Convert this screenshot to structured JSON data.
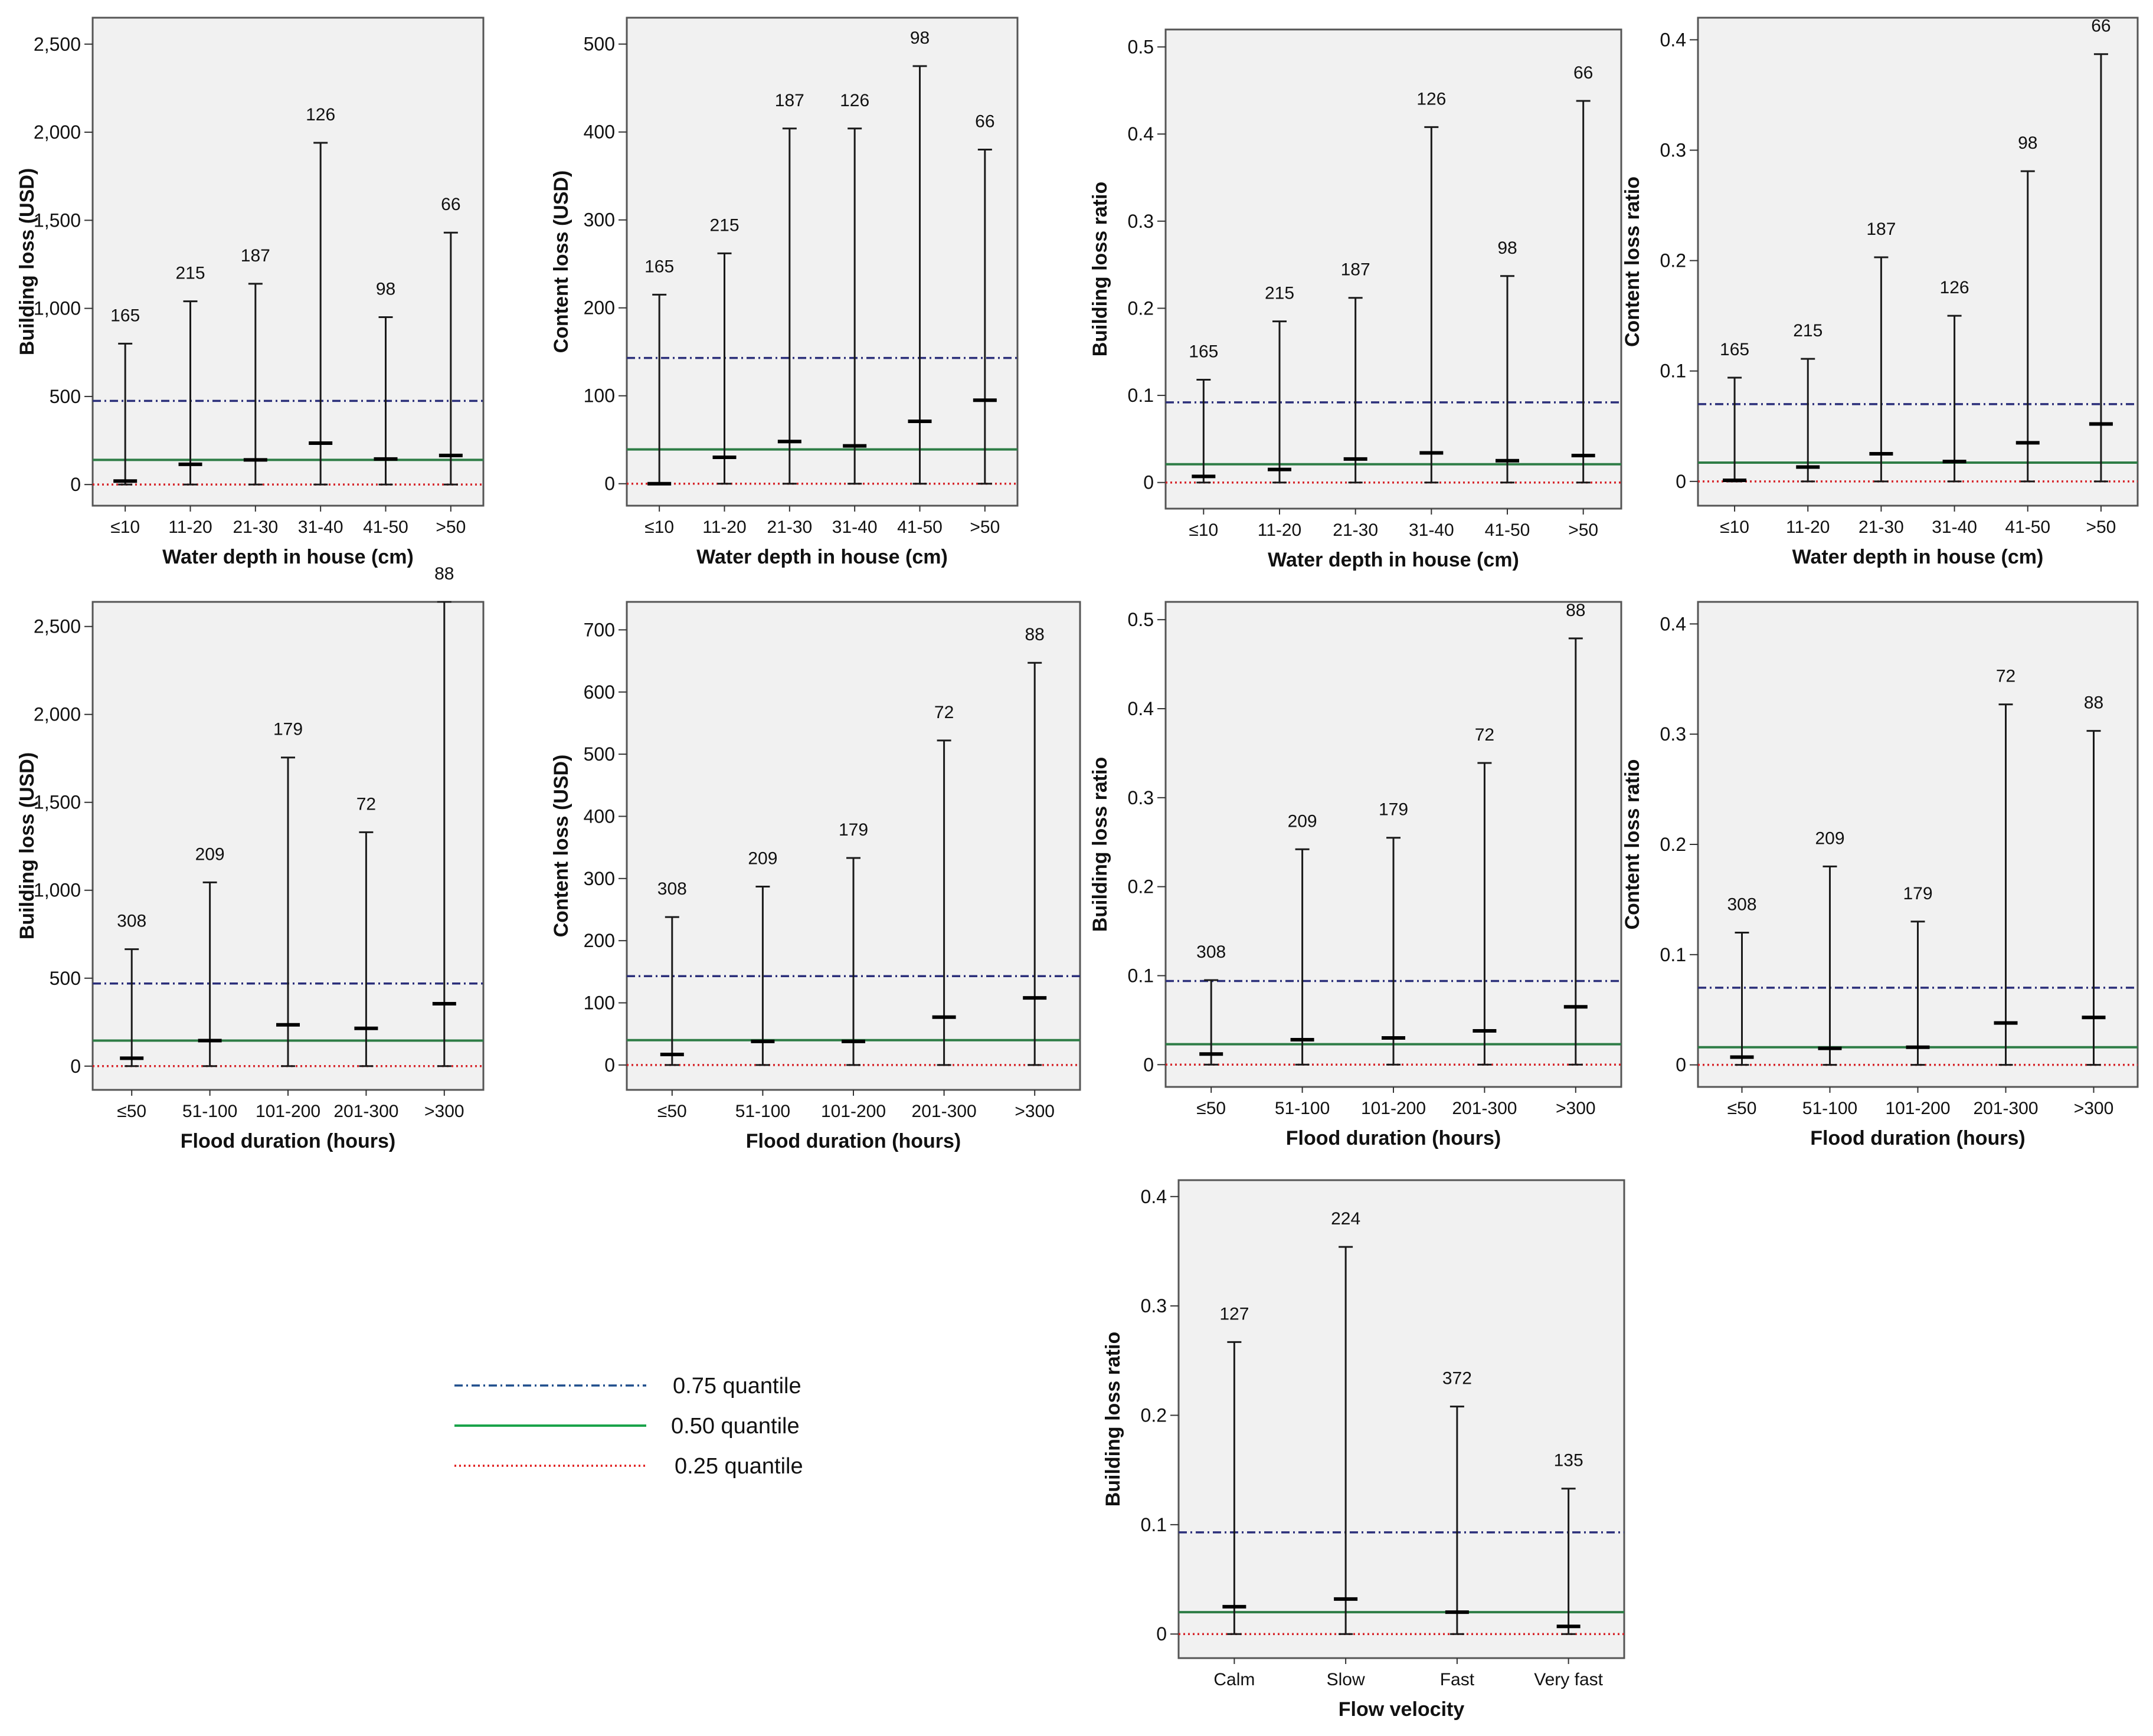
{
  "legend": [
    {
      "key": "q75",
      "label": "0.75 quantile",
      "color": "#1f4e8c",
      "style": "dashdot"
    },
    {
      "key": "q50",
      "label": "0.50 quantile",
      "color": "#1aa34a",
      "style": "solid"
    },
    {
      "key": "q25",
      "label": "0.25 quantile",
      "color": "#e01b1b",
      "style": "dotted"
    }
  ],
  "chart_data": [
    {
      "type": "range",
      "xlabel": "Water depth in house (cm)",
      "ylabel": "Building loss (USD)",
      "ylim": [
        -120,
        2650
      ],
      "yticks": [
        0,
        500,
        1000,
        1500,
        2000,
        2500
      ],
      "ytick_labels": [
        "0",
        "500",
        "1,000",
        "1,500",
        "2,000",
        "2,500"
      ],
      "categories": [
        "≤10",
        "11-20",
        "21-30",
        "31-40",
        "41-50",
        ">50"
      ],
      "min": [
        0,
        0,
        0,
        0,
        0,
        0
      ],
      "max": [
        800,
        1040,
        1140,
        1940,
        950,
        1430
      ],
      "median": [
        20,
        115,
        140,
        235,
        145,
        165
      ],
      "counts": [
        "165",
        "215",
        "187",
        "126",
        "98",
        "66"
      ],
      "quantiles": {
        "q75": 475,
        "q50": 140,
        "q25": 0
      }
    },
    {
      "type": "range",
      "xlabel": "Water depth in house (cm)",
      "ylabel": "Content loss (USD)",
      "ylim": [
        -25,
        530
      ],
      "yticks": [
        0,
        100,
        200,
        300,
        400,
        500
      ],
      "ytick_labels": [
        "0",
        "100",
        "200",
        "300",
        "400",
        "500"
      ],
      "categories": [
        "≤10",
        "11-20",
        "21-30",
        "31-40",
        "41-50",
        ">50"
      ],
      "min": [
        0,
        0,
        0,
        0,
        0,
        0
      ],
      "max": [
        215,
        262,
        404,
        404,
        475,
        380
      ],
      "median": [
        0,
        30,
        48,
        43,
        71,
        95
      ],
      "counts": [
        "165",
        "215",
        "187",
        "126",
        "98",
        "66"
      ],
      "quantiles": {
        "q75": 143,
        "q50": 39,
        "q25": 0
      }
    },
    {
      "type": "range",
      "xlabel": "Water depth in house (cm)",
      "ylabel": "Building loss ratio",
      "ylim": [
        -0.03,
        0.52
      ],
      "yticks": [
        0,
        0.1,
        0.2,
        0.3,
        0.4,
        0.5
      ],
      "ytick_labels": [
        "0",
        "0.1",
        "0.2",
        "0.3",
        "0.4",
        "0.5"
      ],
      "categories": [
        "≤10",
        "11-20",
        "21-30",
        "31-40",
        "41-50",
        ">50"
      ],
      "min": [
        0,
        0,
        0,
        0,
        0,
        0
      ],
      "max": [
        0.118,
        0.185,
        0.212,
        0.408,
        0.237,
        0.438
      ],
      "median": [
        0.007,
        0.015,
        0.027,
        0.034,
        0.025,
        0.031
      ],
      "counts": [
        "165",
        "215",
        "187",
        "126",
        "98",
        "66"
      ],
      "quantiles": {
        "q75": 0.092,
        "q50": 0.021,
        "q25": 0
      }
    },
    {
      "type": "range",
      "xlabel": "Water depth in house (cm)",
      "ylabel": "Content loss ratio",
      "ylim": [
        -0.022,
        0.42
      ],
      "yticks": [
        0,
        0.1,
        0.2,
        0.3,
        0.4
      ],
      "ytick_labels": [
        "0",
        "0.1",
        "0.2",
        "0.3",
        "0.4"
      ],
      "categories": [
        "≤10",
        "11-20",
        "21-30",
        "31-40",
        "41-50",
        ">50"
      ],
      "min": [
        0,
        0,
        0,
        0,
        0,
        0
      ],
      "max": [
        0.094,
        0.111,
        0.203,
        0.15,
        0.281,
        0.387
      ],
      "median": [
        0.001,
        0.013,
        0.025,
        0.018,
        0.035,
        0.052
      ],
      "counts": [
        "165",
        "215",
        "187",
        "126",
        "98",
        "66"
      ],
      "quantiles": {
        "q75": 0.07,
        "q50": 0.017,
        "q25": 0
      }
    },
    {
      "type": "range",
      "xlabel": "Flood duration (hours)",
      "ylabel": "Building loss (USD)",
      "ylim": [
        -135,
        2640
      ],
      "yticks": [
        0,
        500,
        1000,
        1500,
        2000,
        2500
      ],
      "ytick_labels": [
        "0",
        "500",
        "1,000",
        "1,500",
        "2,000",
        "2,500"
      ],
      "categories": [
        "≤50",
        "51-100",
        "101-200",
        "201-300",
        ">300"
      ],
      "min": [
        0,
        0,
        0,
        0,
        0
      ],
      "max": [
        665,
        1045,
        1755,
        1330,
        2640
      ],
      "median": [
        45,
        145,
        235,
        215,
        355
      ],
      "counts": [
        "308",
        "209",
        "179",
        "72",
        "88"
      ],
      "quantiles": {
        "q75": 470,
        "q50": 145,
        "q25": 0
      }
    },
    {
      "type": "range",
      "xlabel": "Flood duration (hours)",
      "ylabel": "Content loss (USD)",
      "ylim": [
        -40,
        745
      ],
      "yticks": [
        0,
        100,
        200,
        300,
        400,
        500,
        600,
        700
      ],
      "ytick_labels": [
        "0",
        "100",
        "200",
        "300",
        "400",
        "500",
        "600",
        "700"
      ],
      "categories": [
        "≤50",
        "51-100",
        "101-200",
        "201-300",
        ">300"
      ],
      "min": [
        0,
        0,
        0,
        0,
        0
      ],
      "max": [
        238,
        287,
        333,
        522,
        647
      ],
      "median": [
        17,
        38,
        38,
        77,
        108
      ],
      "counts": [
        "308",
        "209",
        "179",
        "72",
        "88"
      ],
      "quantiles": {
        "q75": 143,
        "q50": 40,
        "q25": 0
      }
    },
    {
      "type": "range",
      "xlabel": "Flood duration (hours)",
      "ylabel": "Building loss ratio",
      "ylim": [
        -0.025,
        0.52
      ],
      "yticks": [
        0,
        0.1,
        0.2,
        0.3,
        0.4,
        0.5
      ],
      "ytick_labels": [
        "0",
        "0.1",
        "0.2",
        "0.3",
        "0.4",
        "0.5"
      ],
      "categories": [
        "≤50",
        "51-100",
        "101-200",
        "201-300",
        ">300"
      ],
      "min": [
        0,
        0,
        0,
        0,
        0
      ],
      "max": [
        0.095,
        0.242,
        0.255,
        0.339,
        0.479
      ],
      "median": [
        0.012,
        0.028,
        0.03,
        0.038,
        0.065
      ],
      "counts": [
        "308",
        "209",
        "179",
        "72",
        "88"
      ],
      "quantiles": {
        "q75": 0.094,
        "q50": 0.023,
        "q25": 0
      }
    },
    {
      "type": "range",
      "xlabel": "Flood duration (hours)",
      "ylabel": "Content loss ratio",
      "ylim": [
        -0.02,
        0.42
      ],
      "yticks": [
        0,
        0.1,
        0.2,
        0.3,
        0.4
      ],
      "ytick_labels": [
        "0",
        "0.1",
        "0.2",
        "0.3",
        "0.4"
      ],
      "categories": [
        "≤50",
        "51-100",
        "101-200",
        "201-300",
        ">300"
      ],
      "min": [
        0,
        0,
        0,
        0,
        0
      ],
      "max": [
        0.12,
        0.18,
        0.13,
        0.327,
        0.303
      ],
      "median": [
        0.007,
        0.015,
        0.016,
        0.038,
        0.043
      ],
      "counts": [
        "308",
        "209",
        "179",
        "72",
        "88"
      ],
      "quantiles": {
        "q75": 0.07,
        "q50": 0.016,
        "q25": 0
      }
    },
    {
      "type": "range",
      "xlabel": "Flow velocity",
      "ylabel": "Building loss ratio",
      "ylim": [
        -0.022,
        0.415
      ],
      "yticks": [
        0,
        0.1,
        0.2,
        0.3,
        0.4
      ],
      "ytick_labels": [
        "0",
        "0.1",
        "0.2",
        "0.3",
        "0.4"
      ],
      "categories": [
        "Calm",
        "Slow",
        "Fast",
        "Very fast"
      ],
      "min": [
        0,
        0,
        0,
        0
      ],
      "max": [
        0.267,
        0.354,
        0.208,
        0.133
      ],
      "median": [
        0.025,
        0.032,
        0.02,
        0.007
      ],
      "counts": [
        "127",
        "224",
        "372",
        "135"
      ],
      "quantiles": {
        "q75": 0.093,
        "q50": 0.02,
        "q25": 0
      }
    }
  ]
}
